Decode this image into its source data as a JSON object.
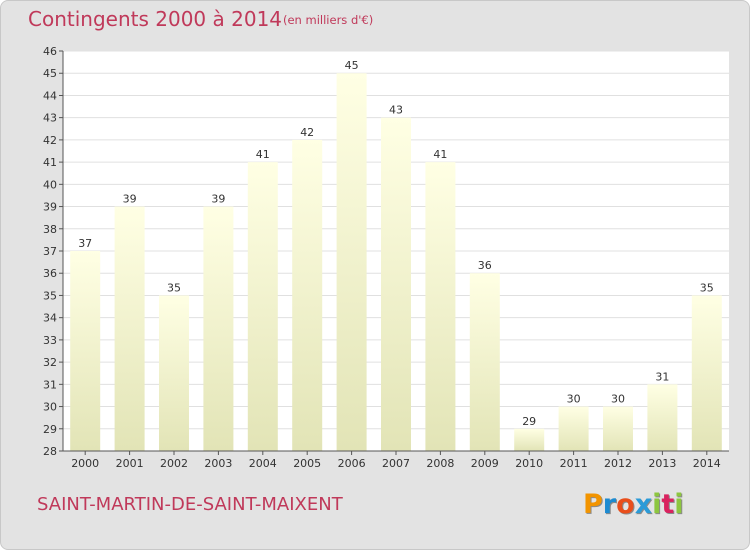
{
  "header": {
    "title": "Contingents 2000 à 2014",
    "unit": "(en milliers d'€)"
  },
  "footer": {
    "commune": "SAINT-MARTIN-DE-SAINT-MAIXENT",
    "logo": "Proxiti",
    "logo_colors": [
      "#f29400",
      "#1d8bd1",
      "#e94e1b",
      "#2b9bd8",
      "#8dc63f",
      "#d9235f",
      "#8dc63f"
    ]
  },
  "colors": {
    "title": "#c0395a",
    "background": "#e3e3e3",
    "plot_background": "#ffffff",
    "grid": "#e0e0e0",
    "bar_top": "#ffffe4",
    "bar_bottom": "#e2e4b6"
  },
  "chart_data": {
    "type": "bar",
    "categories": [
      "2000",
      "2001",
      "2002",
      "2003",
      "2004",
      "2005",
      "2006",
      "2007",
      "2008",
      "2009",
      "2010",
      "2011",
      "2012",
      "2013",
      "2014"
    ],
    "values": [
      37,
      39,
      35,
      39,
      41,
      42,
      45,
      43,
      41,
      36,
      29,
      30,
      30,
      31,
      35
    ],
    "title": "Contingents 2000 à 2014",
    "ylim": [
      28,
      46
    ],
    "yticks": [
      28,
      29,
      30,
      31,
      32,
      33,
      34,
      35,
      36,
      37,
      38,
      39,
      40,
      41,
      42,
      43,
      44,
      45,
      46
    ],
    "grid": true,
    "data_labels": true
  }
}
